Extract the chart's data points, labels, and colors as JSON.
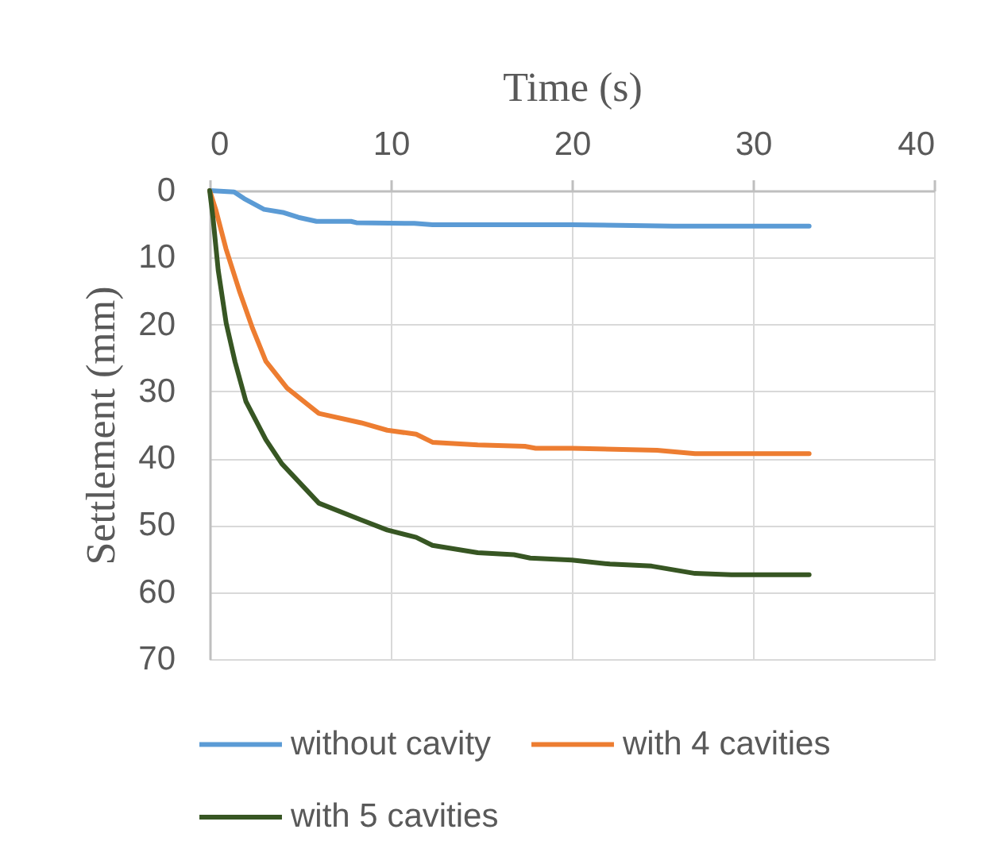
{
  "chart_data": {
    "type": "line",
    "xlabel": "Time (s)",
    "ylabel": "Settlement (mm)",
    "xlim": [
      0,
      40
    ],
    "xticks": [
      0,
      10,
      20,
      30,
      40
    ],
    "ylim": [
      70,
      0
    ],
    "yticks": [
      0,
      10,
      20,
      30,
      40,
      50,
      60,
      70
    ],
    "grid": true,
    "legend": "bottom",
    "marker": "none",
    "line_style": "solid",
    "series": [
      {
        "name": "without cavity",
        "color": "#5b9bd5",
        "x": [
          0,
          1.35,
          1.9,
          3.0,
          4.1,
          4.9,
          5.9,
          7.8,
          8.1,
          11.3,
          12.3,
          20,
          25.6,
          33.1
        ],
        "values": [
          0,
          0.2,
          1.2,
          2.8,
          3.3,
          4.0,
          4.6,
          4.6,
          4.8,
          4.9,
          5.1,
          5.1,
          5.3,
          5.3
        ]
      },
      {
        "name": "with 4 cavities",
        "color": "#ed7d31",
        "x": [
          0,
          0.33,
          0.9,
          1.64,
          2.37,
          3.1,
          4.27,
          6.03,
          8.37,
          9.8,
          11.4,
          12.3,
          14.8,
          17.4,
          18,
          20,
          24.7,
          26.8,
          33.1
        ],
        "values": [
          0,
          2.8,
          8.7,
          15.0,
          20.6,
          25.5,
          29.5,
          33.3,
          34.7,
          35.8,
          36.4,
          37.6,
          38.0,
          38.2,
          38.5,
          38.5,
          38.8,
          39.3,
          39.3
        ]
      },
      {
        "name": "with 5 cavities",
        "color": "#375623",
        "x": [
          0,
          0.18,
          0.47,
          0.91,
          1.4,
          2.0,
          3.1,
          3.98,
          6.03,
          8.37,
          9.8,
          11.4,
          12.3,
          14.8,
          16.8,
          17.7,
          20,
          22.1,
          24.4,
          26.8,
          28.8,
          33.1
        ],
        "values": [
          0,
          4.0,
          11.9,
          19.8,
          25.6,
          31.5,
          37.2,
          40.8,
          46.7,
          49.2,
          50.7,
          51.8,
          53.0,
          54.1,
          54.4,
          54.9,
          55.2,
          55.8,
          56.1,
          57.2,
          57.4,
          57.4
        ]
      }
    ]
  }
}
